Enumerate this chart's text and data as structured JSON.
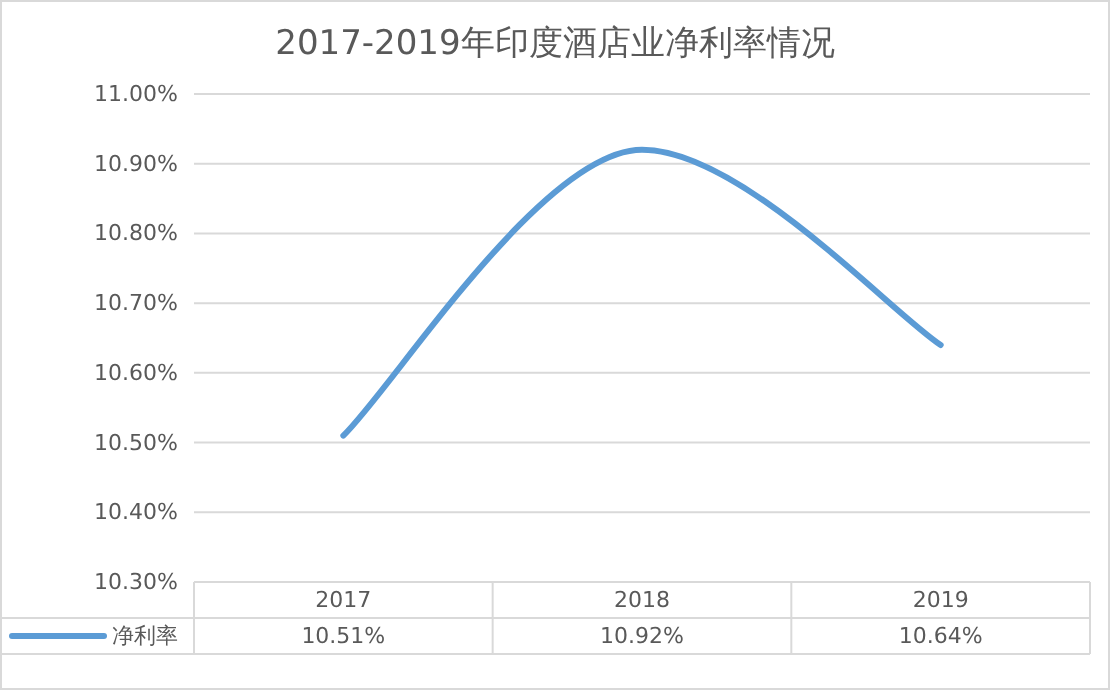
{
  "chart_data": {
    "type": "line",
    "title": "2017-2019年印度酒店业净利率情况",
    "categories": [
      "2017",
      "2018",
      "2019"
    ],
    "series": [
      {
        "name": "净利率",
        "color": "#5b9bd5",
        "values": [
          10.51,
          10.92,
          10.64
        ],
        "value_labels": [
          "10.51%",
          "10.92%",
          "10.64%"
        ]
      }
    ],
    "ylim": [
      10.3,
      11.0
    ],
    "yticks": [
      {
        "value": 10.3,
        "label": "10.30%"
      },
      {
        "value": 10.4,
        "label": "10.40%"
      },
      {
        "value": 10.5,
        "label": "10.50%"
      },
      {
        "value": 10.6,
        "label": "10.60%"
      },
      {
        "value": 10.7,
        "label": "10.70%"
      },
      {
        "value": 10.8,
        "label": "10.80%"
      },
      {
        "value": 10.9,
        "label": "10.90%"
      },
      {
        "value": 11.0,
        "label": "11.00%"
      }
    ],
    "grid": "y",
    "legend": "bottom",
    "marker": "none",
    "line_style": "solid"
  }
}
